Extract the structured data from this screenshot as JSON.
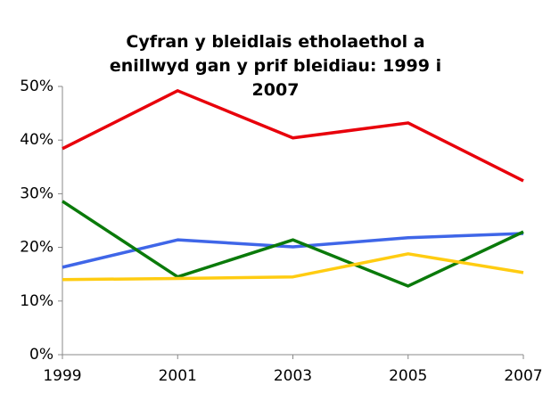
{
  "chart_data": {
    "type": "line",
    "title": "Cyfran y bleidlais etholaethol a enillwyd gan y prif bleidiau: 1999 i 2007",
    "x": [
      1999,
      2001,
      2003,
      2005,
      2007
    ],
    "xlim": [
      1999,
      2007
    ],
    "xticks": [
      1999,
      2001,
      2003,
      2005,
      2007
    ],
    "ylim": [
      0,
      50
    ],
    "yticks": [
      {
        "value": 0,
        "label": "0%"
      },
      {
        "value": 10,
        "label": "10%"
      },
      {
        "value": 20,
        "label": "20%"
      },
      {
        "value": 30,
        "label": "30%"
      },
      {
        "value": 40,
        "label": "40%"
      },
      {
        "value": 50,
        "label": "50%"
      }
    ],
    "grid": false,
    "series": [
      {
        "color": "#e8000b",
        "values": [
          38.4,
          49.2,
          40.4,
          43.2,
          32.4
        ]
      },
      {
        "color": "#3f66e8",
        "values": [
          16.3,
          21.4,
          20.1,
          21.8,
          22.6
        ]
      },
      {
        "color": "#0a7a0a",
        "values": [
          28.6,
          14.5,
          21.4,
          12.8,
          22.9
        ]
      },
      {
        "color": "#ffcc11",
        "values": [
          14.0,
          14.2,
          14.5,
          18.8,
          15.3
        ]
      }
    ]
  }
}
